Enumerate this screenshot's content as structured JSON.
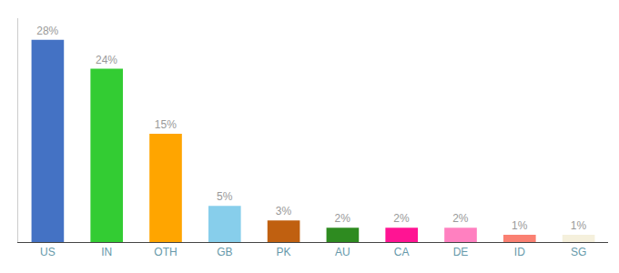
{
  "chart_data": {
    "type": "bar",
    "categories": [
      "US",
      "IN",
      "OTH",
      "GB",
      "PK",
      "AU",
      "CA",
      "DE",
      "ID",
      "SG"
    ],
    "values": [
      28,
      24,
      15,
      5,
      3,
      2,
      2,
      2,
      1,
      1
    ],
    "value_labels": [
      "28%",
      "24%",
      "15%",
      "5%",
      "3%",
      "2%",
      "2%",
      "2%",
      "1%",
      "1%"
    ],
    "colors": [
      "#4472C4",
      "#33CC33",
      "#FFA500",
      "#87CEEB",
      "#C06010",
      "#2E8B20",
      "#FF1493",
      "#FF80C0",
      "#FA8072",
      "#F5F0DC"
    ],
    "ylim": [
      0,
      31
    ],
    "data_labels": true,
    "tick_labels": "x",
    "grid": false
  }
}
